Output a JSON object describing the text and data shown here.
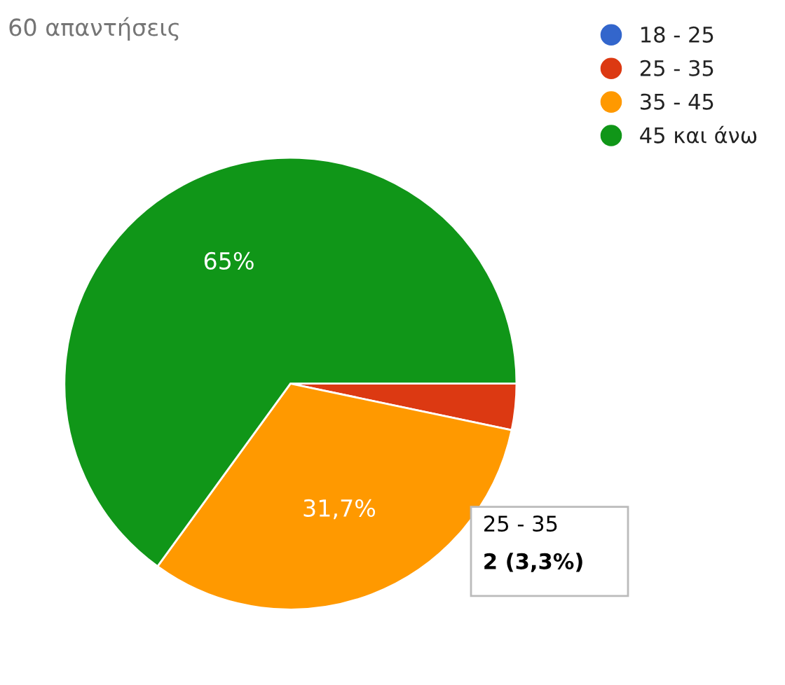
{
  "chart_data": {
    "type": "pie",
    "title": "60 απαντήσεις",
    "categories": [
      "18 - 25",
      "25 - 35",
      "35 - 45",
      "45 και άνω"
    ],
    "values": [
      0,
      3.3,
      31.7,
      65
    ],
    "colors": [
      "#3366cc",
      "#dc3912",
      "#ff9900",
      "#109618"
    ],
    "value_labels": [
      null,
      null,
      "31,7%",
      "65%"
    ],
    "annotations": [
      "25 - 35",
      "2 (3,3%)"
    ],
    "legend": "top right"
  }
}
